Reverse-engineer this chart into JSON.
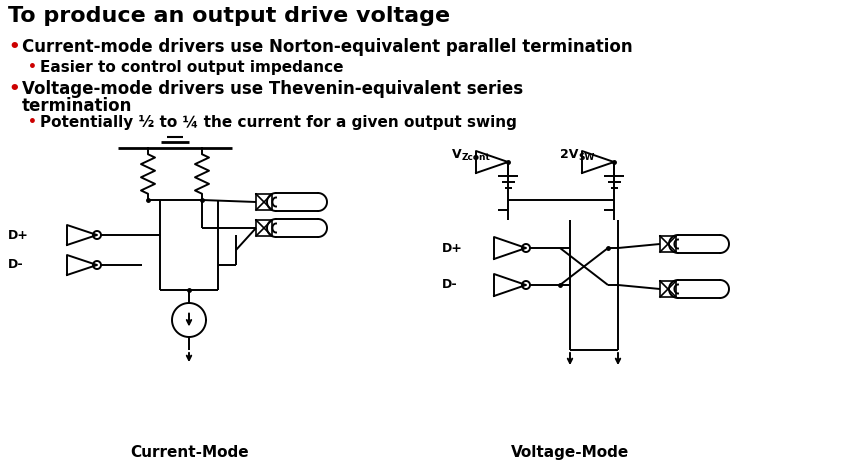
{
  "title": "To produce an output drive voltage",
  "bg_color": "#ffffff",
  "black": "#000000",
  "red": "#cc0000",
  "dark_orange": "#cc6600",
  "bullet1_text1": "Current-mode drivers use Norton-equivalent parallel termination",
  "bullet2_text1": "Easier to control output impedance",
  "bullet1_text2a": "Voltage-mode drivers use Thevenin-equivalent series",
  "bullet1_text2b": "termination",
  "bullet2_text2": "Potentially ½ to ¼ the current for a given output swing",
  "cm_label": "Current-Mode",
  "vm_label": "Voltage-Mode",
  "figw": 8.48,
  "figh": 4.73,
  "dpi": 100
}
